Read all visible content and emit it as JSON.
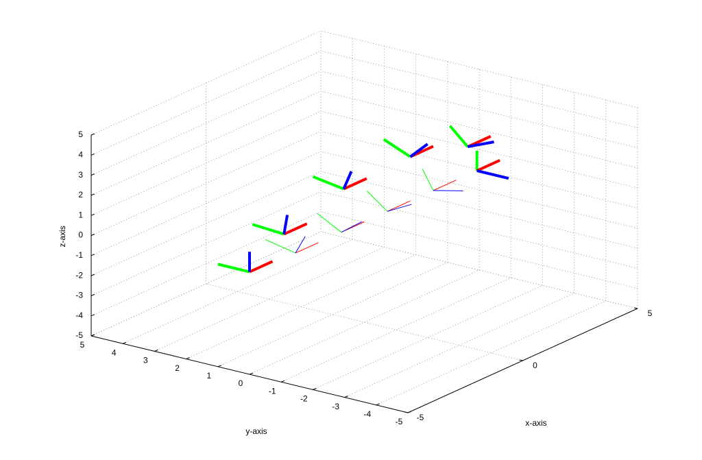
{
  "chart_data": {
    "type": "frames3d",
    "xlabel": "x-axis",
    "ylabel": "y-axis",
    "zlabel": "z-axis",
    "xlim": [
      -5,
      5
    ],
    "ylim": [
      -5,
      5
    ],
    "zlim": [
      -5,
      5
    ],
    "xticks": [
      -5,
      0,
      5
    ],
    "yticks": [
      -5,
      -4,
      -3,
      -2,
      -1,
      0,
      1,
      2,
      3,
      4,
      5
    ],
    "zticks": [
      -5,
      -4,
      -3,
      -2,
      -1,
      0,
      1,
      2,
      3,
      4,
      5
    ],
    "grid": true,
    "axis_colors": [
      "#ff0000",
      "#00ff00",
      "#0000ff"
    ],
    "frames": [
      {
        "x": -5,
        "y": 0,
        "z": 0.1,
        "roll": 0,
        "weight": "thick"
      },
      {
        "x": -3.5,
        "y": 0,
        "z": 1.2,
        "roll": 6,
        "weight": "thick"
      },
      {
        "x": -0.9,
        "y": 0,
        "z": 2.1,
        "roll": 14,
        "weight": "thick"
      },
      {
        "x": 2,
        "y": 0,
        "z": 2.2,
        "roll": 33,
        "weight": "thick"
      },
      {
        "x": 4.5,
        "y": 0,
        "z": 1.4,
        "roll": 56,
        "weight": "thick"
      },
      {
        "x": 4.9,
        "y": 0,
        "z": 0,
        "roll": 90,
        "weight": "thick"
      },
      {
        "x": -3,
        "y": 0,
        "z": 0,
        "roll": 18,
        "weight": "thin"
      },
      {
        "x": -1,
        "y": 0,
        "z": 0,
        "roll": 40,
        "weight": "thin"
      },
      {
        "x": 1,
        "y": 0,
        "z": 0,
        "roll": 50,
        "weight": "thin"
      },
      {
        "x": 3,
        "y": 0,
        "z": 0,
        "roll": 70,
        "weight": "thin"
      }
    ]
  }
}
